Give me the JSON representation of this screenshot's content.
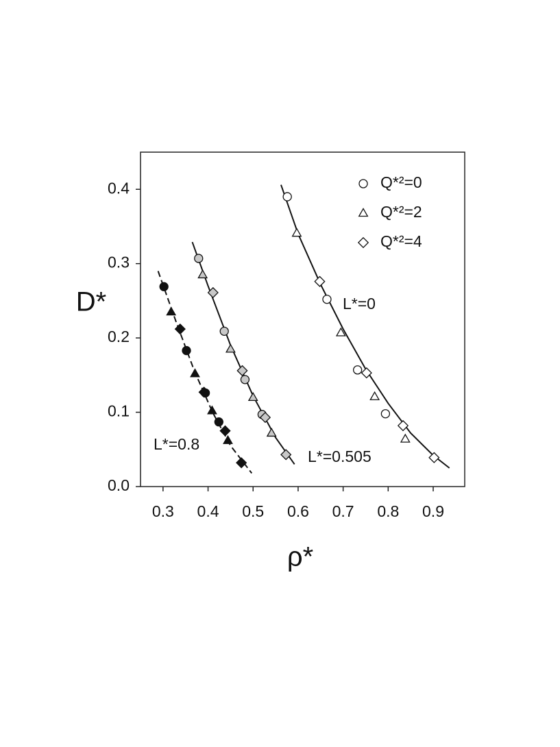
{
  "chart_data": {
    "type": "scatter",
    "x_label": "ρ*",
    "y_label": "D*",
    "xlim": [
      0.25,
      0.97
    ],
    "ylim": [
      0,
      0.45
    ],
    "xticks": [
      0.3,
      0.4,
      0.5,
      0.6,
      0.7,
      0.8,
      0.9
    ],
    "yticks": [
      {
        "value": 0,
        "label": "0.0"
      },
      0.1,
      0.2,
      0.3,
      0.4
    ],
    "legend": "upper right",
    "groups": [
      {
        "label": "L*=0",
        "fill": "#ffffff",
        "dashed": false,
        "fit_x": [
          0.562,
          0.6,
          0.65,
          0.7,
          0.75,
          0.8,
          0.85,
          0.9,
          0.936
        ],
        "fit_values": [
          0.406,
          0.34,
          0.272,
          0.212,
          0.158,
          0.112,
          0.072,
          0.042,
          0.025
        ]
      },
      {
        "label": "L*=0.505",
        "fill": "#c8c8c8",
        "dashed": false,
        "fit_x": [
          0.365,
          0.4,
          0.45,
          0.5,
          0.55,
          0.592
        ],
        "fit_values": [
          0.329,
          0.27,
          0.19,
          0.122,
          0.066,
          0.03
        ]
      },
      {
        "label": "L*=0.8",
        "fill": "#111111",
        "dashed": true,
        "fit_x": [
          0.289,
          0.33,
          0.37,
          0.41,
          0.45,
          0.497
        ],
        "fit_values": [
          0.29,
          0.22,
          0.155,
          0.1,
          0.055,
          0.018
        ]
      }
    ],
    "series": [
      {
        "name": "Q*²=0",
        "marker": "circle",
        "x": [
          [
            0.576,
            0.664,
            0.732,
            0.794
          ],
          [
            0.379,
            0.436,
            0.482,
            0.52
          ],
          [
            0.302,
            0.352,
            0.394,
            0.424
          ]
        ],
        "values": [
          [
            0.39,
            0.252,
            0.157,
            0.098
          ],
          [
            0.307,
            0.209,
            0.144,
            0.097
          ],
          [
            0.269,
            0.183,
            0.126,
            0.087
          ]
        ]
      },
      {
        "name": "Q*²=2",
        "marker": "triangle",
        "x": [
          [
            0.597,
            0.695,
            0.77,
            0.838
          ],
          [
            0.388,
            0.45,
            0.5,
            0.541
          ],
          [
            0.318,
            0.371,
            0.409,
            0.444
          ]
        ],
        "values": [
          [
            0.341,
            0.207,
            0.121,
            0.064
          ],
          [
            0.285,
            0.185,
            0.12,
            0.072
          ],
          [
            0.235,
            0.152,
            0.102,
            0.062
          ]
        ]
      },
      {
        "name": "Q*²=4",
        "marker": "diamond",
        "x": [
          [
            0.648,
            0.752,
            0.833,
            0.902
          ],
          [
            0.411,
            0.476,
            0.527,
            0.573
          ],
          [
            0.338,
            0.391,
            0.438,
            0.474
          ]
        ],
        "values": [
          [
            0.276,
            0.153,
            0.082,
            0.039
          ],
          [
            0.261,
            0.156,
            0.093,
            0.043
          ],
          [
            0.212,
            0.127,
            0.075,
            0.032
          ]
        ]
      }
    ]
  }
}
